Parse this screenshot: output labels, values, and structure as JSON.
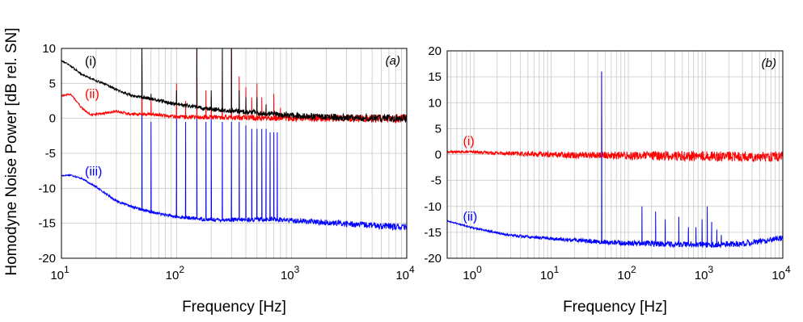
{
  "chart_data": [
    {
      "type": "line",
      "panel_tag": "(a)",
      "xlabel": "Frequency [Hz]",
      "ylabel": "Homodyne Noise Power [dB rel. SN]",
      "xscale": "log",
      "xlim": [
        10,
        10000
      ],
      "ylim": [
        -20,
        10
      ],
      "yticks": [
        -20,
        -15,
        -10,
        -5,
        0,
        5,
        10
      ],
      "xticks": [
        {
          "base": "10",
          "exp": "1"
        },
        {
          "base": "10",
          "exp": "2"
        },
        {
          "base": "10",
          "exp": "3"
        },
        {
          "base": "10",
          "exp": "4"
        }
      ],
      "grid": true,
      "series": [
        {
          "name": "(iii)",
          "color": "#0000ff",
          "label_at": {
            "x": 16,
            "y": -8.2
          },
          "baseline": [
            [
              10,
              -8.2
            ],
            [
              12,
              -8.1
            ],
            [
              15,
              -8.6
            ],
            [
              20,
              -9.8
            ],
            [
              30,
              -11.8
            ],
            [
              40,
              -12.6
            ],
            [
              60,
              -13.4
            ],
            [
              100,
              -14.1
            ],
            [
              200,
              -14.5
            ],
            [
              400,
              -14.5
            ],
            [
              700,
              -14.4
            ],
            [
              1000,
              -14.6
            ],
            [
              2000,
              -14.9
            ],
            [
              5000,
              -15.3
            ],
            [
              10000,
              -15.6
            ]
          ],
          "noise": 0.25,
          "peaks": [
            [
              50,
              10
            ],
            [
              60,
              -0.5
            ],
            [
              100,
              0
            ],
            [
              120,
              -0.5
            ],
            [
              150,
              0
            ],
            [
              180,
              -0.5
            ],
            [
              200,
              0
            ],
            [
              250,
              -0.5
            ],
            [
              300,
              -0.5
            ],
            [
              350,
              -0.5
            ],
            [
              400,
              -1
            ],
            [
              450,
              -1.5
            ],
            [
              500,
              -1.5
            ],
            [
              550,
              -1.5
            ],
            [
              600,
              -1.5
            ],
            [
              650,
              -2
            ],
            [
              700,
              -2
            ],
            [
              750,
              -2
            ]
          ]
        },
        {
          "name": "(ii)",
          "color": "#ff0000",
          "label_at": {
            "x": 16,
            "y": 2.9
          },
          "baseline": [
            [
              10,
              3.2
            ],
            [
              12,
              3.5
            ],
            [
              15,
              1.5
            ],
            [
              18,
              0.5
            ],
            [
              25,
              0.8
            ],
            [
              30,
              1.0
            ],
            [
              40,
              0.6
            ],
            [
              60,
              0.6
            ],
            [
              100,
              0.2
            ],
            [
              300,
              0.1
            ],
            [
              1000,
              0.0
            ],
            [
              10000,
              0.0
            ]
          ],
          "noise": 0.3,
          "peaks": [
            [
              50,
              10
            ],
            [
              60,
              3
            ],
            [
              100,
              5
            ],
            [
              120,
              2.5
            ],
            [
              150,
              10
            ],
            [
              180,
              4
            ],
            [
              200,
              3
            ],
            [
              250,
              7
            ],
            [
              300,
              10
            ],
            [
              350,
              6
            ],
            [
              400,
              4.5
            ],
            [
              450,
              3
            ],
            [
              500,
              5
            ],
            [
              550,
              3
            ],
            [
              600,
              2
            ],
            [
              700,
              3.5
            ],
            [
              800,
              1.5
            ]
          ]
        },
        {
          "name": "(i)",
          "color": "#000000",
          "label_at": {
            "x": 16,
            "y": 7.6
          },
          "baseline": [
            [
              10,
              8.3
            ],
            [
              12,
              7.5
            ],
            [
              15,
              6.3
            ],
            [
              20,
              5.4
            ],
            [
              25,
              4.8
            ],
            [
              30,
              4.1
            ],
            [
              40,
              3.3
            ],
            [
              60,
              2.8
            ],
            [
              100,
              2.0
            ],
            [
              200,
              1.3
            ],
            [
              500,
              0.8
            ],
            [
              1000,
              0.4
            ],
            [
              3000,
              0.1
            ],
            [
              10000,
              0.0
            ]
          ],
          "noise": 0.3,
          "peaks": [
            [
              50,
              10
            ],
            [
              60,
              3.5
            ],
            [
              100,
              4
            ],
            [
              150,
              10
            ],
            [
              200,
              4
            ],
            [
              250,
              10
            ],
            [
              300,
              10
            ],
            [
              350,
              4
            ],
            [
              400,
              3
            ],
            [
              500,
              3
            ],
            [
              600,
              2
            ]
          ]
        }
      ]
    },
    {
      "type": "line",
      "panel_tag": "(b)",
      "xlabel": "Frequency [Hz]",
      "xscale": "log",
      "xlim": [
        0.45,
        10000
      ],
      "ylim": [
        -20,
        20
      ],
      "yticks": [
        -20,
        -15,
        -10,
        -5,
        0,
        5,
        10,
        15,
        20
      ],
      "xticks": [
        {
          "base": "10",
          "exp": "0"
        },
        {
          "base": "10",
          "exp": "1"
        },
        {
          "base": "10",
          "exp": "2"
        },
        {
          "base": "10",
          "exp": "3"
        },
        {
          "base": "10",
          "exp": "4"
        }
      ],
      "grid": true,
      "series": [
        {
          "name": "(i)",
          "color": "#ff0000",
          "label_at": {
            "x": 0.72,
            "y": 1.8
          },
          "baseline": [
            [
              0.45,
              0.5
            ],
            [
              1,
              0.5
            ],
            [
              3,
              0.2
            ],
            [
              10,
              0.0
            ],
            [
              100,
              -0.2
            ],
            [
              1000,
              -0.3
            ],
            [
              10000,
              -0.4
            ]
          ],
          "noise": 0.5,
          "peaks": [
            [
              45,
              16
            ]
          ]
        },
        {
          "name": "(ii)",
          "color": "#0000ff",
          "label_at": {
            "x": 0.72,
            "y": -12.8
          },
          "baseline": [
            [
              0.45,
              -12.8
            ],
            [
              1,
              -14.2
            ],
            [
              3,
              -15.6
            ],
            [
              10,
              -16.2
            ],
            [
              40,
              -16.8
            ],
            [
              100,
              -17.1
            ],
            [
              500,
              -17.3
            ],
            [
              1000,
              -17.4
            ],
            [
              3000,
              -17.2
            ],
            [
              6000,
              -16.6
            ],
            [
              10000,
              -16.0
            ]
          ],
          "noise": 0.3,
          "peaks": [
            [
              45,
              16
            ],
            [
              150,
              -10
            ],
            [
              225,
              -11
            ],
            [
              300,
              -12.5
            ],
            [
              450,
              -12
            ],
            [
              600,
              -14
            ],
            [
              750,
              -14
            ],
            [
              900,
              -12.5
            ],
            [
              1050,
              -10
            ],
            [
              1200,
              -13
            ],
            [
              1400,
              -14.5
            ],
            [
              1600,
              -15.5
            ]
          ]
        }
      ]
    }
  ]
}
